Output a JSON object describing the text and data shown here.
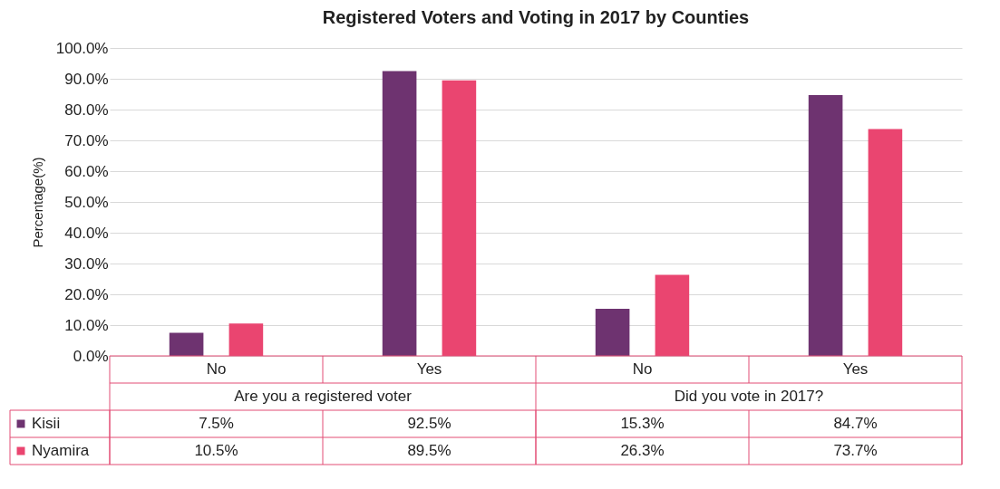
{
  "chart_data": {
    "type": "bar",
    "title": "Registered Voters and Voting in 2017 by Counties",
    "ylabel": "Percentage(%)",
    "categories": [
      "No",
      "Yes",
      "No",
      "Yes"
    ],
    "annotations": [
      "Are you a registered voter",
      "Did you vote in 2017?"
    ],
    "series": [
      {
        "name": "Kisii",
        "color": "#6e3370",
        "values": [
          7.5,
          92.5,
          15.3,
          84.7
        ],
        "value_labels": [
          "7.5%",
          "92.5%",
          "15.3%",
          "84.7%"
        ]
      },
      {
        "name": "Nyamira",
        "color": "#ea4570",
        "values": [
          10.5,
          89.5,
          26.3,
          73.7
        ],
        "value_labels": [
          "10.5%",
          "89.5%",
          "26.3%",
          "73.7%"
        ]
      }
    ],
    "ylim": [
      0,
      100
    ],
    "yticks": [
      {
        "value": 0,
        "label": "0.0%"
      },
      {
        "value": 10,
        "label": "10.0%"
      },
      {
        "value": 20,
        "label": "20.0%"
      },
      {
        "value": 30,
        "label": "30.0%"
      },
      {
        "value": 40,
        "label": "40.0%"
      },
      {
        "value": 50,
        "label": "50.0%"
      },
      {
        "value": 60,
        "label": "60.0%"
      },
      {
        "value": 70,
        "label": "70.0%"
      },
      {
        "value": 80,
        "label": "80.0%"
      },
      {
        "value": 90,
        "label": "90.0%"
      },
      {
        "value": 100,
        "label": "100.0%"
      }
    ],
    "grid": "y",
    "legend": "bottom"
  }
}
